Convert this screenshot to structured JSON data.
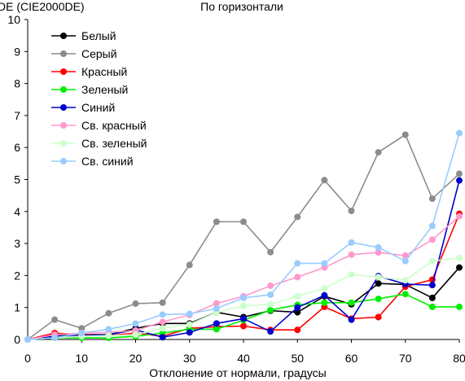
{
  "chart_data": {
    "type": "line",
    "title": "По горизонтали",
    "ylabel": "DE (CIE2000DE)",
    "xlabel": "Отклонение от нормали, градусы",
    "x": [
      0,
      5,
      10,
      15,
      20,
      25,
      30,
      35,
      40,
      45,
      50,
      55,
      60,
      65,
      70,
      75,
      80
    ],
    "xlim": [
      0,
      80
    ],
    "ylim": [
      0,
      10
    ],
    "xticks": [
      0,
      10,
      20,
      30,
      40,
      50,
      60,
      70,
      80
    ],
    "yticks": [
      0,
      1,
      2,
      3,
      4,
      5,
      6,
      7,
      8,
      9,
      10
    ],
    "grid": false,
    "legend_position": "top-left",
    "series": [
      {
        "name": "Белый",
        "color": "#000000",
        "values": [
          0.0,
          0.15,
          0.15,
          0.15,
          0.35,
          0.5,
          0.5,
          0.85,
          0.7,
          0.9,
          0.85,
          1.35,
          1.1,
          1.75,
          1.72,
          1.3,
          2.25
        ]
      },
      {
        "name": "Серый",
        "color": "#8c8c8c",
        "values": [
          0.0,
          0.62,
          0.35,
          0.82,
          1.12,
          1.15,
          2.33,
          3.68,
          3.68,
          2.73,
          3.83,
          4.98,
          4.02,
          5.85,
          6.4,
          4.4,
          5.18
        ]
      },
      {
        "name": "Красный",
        "color": "#ff0000",
        "values": [
          0.0,
          0.2,
          0.15,
          0.12,
          0.2,
          0.1,
          0.35,
          0.4,
          0.42,
          0.3,
          0.3,
          1.02,
          0.65,
          0.7,
          1.65,
          1.87,
          3.93
        ]
      },
      {
        "name": "Зеленый",
        "color": "#00ee00",
        "values": [
          0.0,
          0.05,
          0.05,
          0.05,
          0.1,
          0.2,
          0.32,
          0.32,
          0.6,
          0.92,
          1.08,
          1.15,
          1.15,
          1.27,
          1.42,
          1.02,
          1.02
        ]
      },
      {
        "name": "Синий",
        "color": "#0000cc",
        "values": [
          0.0,
          0.1,
          0.12,
          0.15,
          0.3,
          0.07,
          0.22,
          0.5,
          0.65,
          0.25,
          1.0,
          1.38,
          0.62,
          1.98,
          1.73,
          1.7,
          4.97
        ]
      },
      {
        "name": "Св. красный",
        "color": "#ff99cc",
        "values": [
          0.0,
          0.15,
          0.2,
          0.22,
          0.28,
          0.55,
          0.77,
          1.13,
          1.35,
          1.68,
          1.95,
          2.25,
          2.65,
          2.72,
          2.62,
          3.12,
          3.85
        ]
      },
      {
        "name": "Св. зеленый",
        "color": "#ccffcc",
        "values": [
          0.0,
          0.05,
          0.1,
          0.12,
          0.15,
          0.35,
          0.47,
          0.85,
          1.05,
          1.1,
          1.35,
          1.6,
          2.03,
          1.95,
          1.85,
          2.45,
          2.55
        ]
      },
      {
        "name": "Св. синий",
        "color": "#99ccff",
        "values": [
          0.0,
          0.05,
          0.2,
          0.32,
          0.5,
          0.78,
          0.8,
          0.97,
          1.3,
          1.4,
          2.38,
          2.38,
          3.03,
          2.88,
          2.45,
          3.55,
          6.45
        ]
      }
    ]
  }
}
